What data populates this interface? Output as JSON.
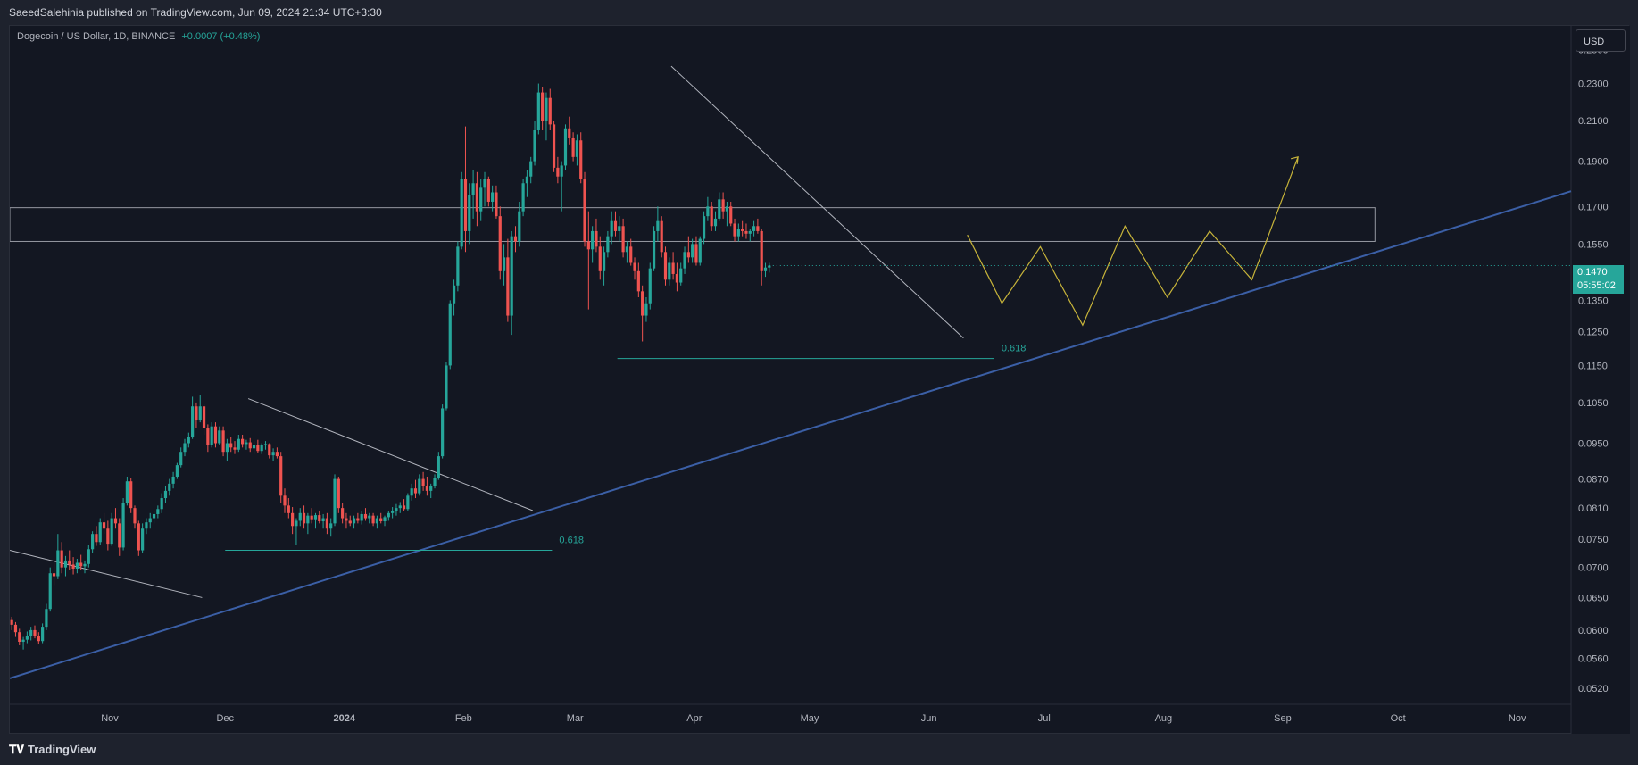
{
  "header": {
    "published_text": "SaeedSalehinia published on TradingView.com, Jun 09, 2024 21:34 UTC+3:30"
  },
  "legend": {
    "symbol": "Dogecoin / US Dollar, 1D, BINANCE",
    "change": "+0.0007 (+0.48%)"
  },
  "currency_label": "USD",
  "last_price": {
    "price": "0.1470",
    "countdown": "05:55:02"
  },
  "footer": {
    "logo_text": "TradingView"
  },
  "colors": {
    "up": "#26a69a",
    "down": "#ef5350",
    "trendline": "#3b5fa6",
    "projection": "#c7b43a",
    "fib": "#26a69a",
    "background": "#131722"
  },
  "chart_data": {
    "type": "candlestick",
    "scale": "log",
    "ylim": [
      0.05,
      0.265
    ],
    "y_ticks": [
      "0.2500",
      "0.2300",
      "0.2100",
      "0.1900",
      "0.1700",
      "0.1550",
      "0.1350",
      "0.1250",
      "0.1150",
      "0.1050",
      "0.0950",
      "0.0870",
      "0.0810",
      "0.0750",
      "0.0700",
      "0.0650",
      "0.0600",
      "0.0560",
      "0.0520"
    ],
    "x_ticks": [
      "Nov",
      "Dec",
      "2024",
      "Feb",
      "Mar",
      "Apr",
      "May",
      "Jun",
      "Jul",
      "Aug",
      "Sep",
      "Oct",
      "Nov"
    ],
    "x_range": [
      "2023-10-06",
      "2024-11-15"
    ],
    "candles_ohlc": [
      [
        0.0615,
        0.062,
        0.06,
        0.0608
      ],
      [
        0.0608,
        0.0612,
        0.059,
        0.0597
      ],
      [
        0.0597,
        0.0602,
        0.0578,
        0.0583
      ],
      [
        0.0583,
        0.059,
        0.0572,
        0.0586
      ],
      [
        0.0586,
        0.0598,
        0.0581,
        0.0592
      ],
      [
        0.0592,
        0.0605,
        0.0585,
        0.06
      ],
      [
        0.06,
        0.0607,
        0.0588,
        0.0591
      ],
      [
        0.0591,
        0.0597,
        0.058,
        0.0584
      ],
      [
        0.0584,
        0.061,
        0.0581,
        0.0605
      ],
      [
        0.0605,
        0.064,
        0.06,
        0.0632
      ],
      [
        0.0632,
        0.07,
        0.0628,
        0.069
      ],
      [
        0.069,
        0.0708,
        0.067,
        0.0685
      ],
      [
        0.0685,
        0.076,
        0.068,
        0.073
      ],
      [
        0.073,
        0.0745,
        0.069,
        0.07
      ],
      [
        0.07,
        0.072,
        0.0685,
        0.0712
      ],
      [
        0.0712,
        0.073,
        0.0695,
        0.0705
      ],
      [
        0.0705,
        0.0718,
        0.0688,
        0.0698
      ],
      [
        0.0698,
        0.0715,
        0.069,
        0.0708
      ],
      [
        0.0708,
        0.0722,
        0.0695,
        0.0702
      ],
      [
        0.0702,
        0.0712,
        0.069,
        0.0706
      ],
      [
        0.0706,
        0.074,
        0.07,
        0.0732
      ],
      [
        0.0732,
        0.0765,
        0.0725,
        0.076
      ],
      [
        0.076,
        0.0775,
        0.0738,
        0.0745
      ],
      [
        0.0745,
        0.079,
        0.074,
        0.0782
      ],
      [
        0.0782,
        0.08,
        0.076,
        0.077
      ],
      [
        0.077,
        0.0785,
        0.073,
        0.0742
      ],
      [
        0.0742,
        0.08,
        0.0738,
        0.079
      ],
      [
        0.079,
        0.081,
        0.077,
        0.078
      ],
      [
        0.078,
        0.079,
        0.072,
        0.0735
      ],
      [
        0.0735,
        0.083,
        0.073,
        0.082
      ],
      [
        0.082,
        0.0875,
        0.0815,
        0.0865
      ],
      [
        0.0865,
        0.0872,
        0.08,
        0.081
      ],
      [
        0.081,
        0.0815,
        0.077,
        0.078
      ],
      [
        0.078,
        0.0785,
        0.072,
        0.073
      ],
      [
        0.073,
        0.078,
        0.0725,
        0.077
      ],
      [
        0.077,
        0.079,
        0.076,
        0.0782
      ],
      [
        0.0782,
        0.08,
        0.077,
        0.079
      ],
      [
        0.079,
        0.0805,
        0.078,
        0.0798
      ],
      [
        0.0798,
        0.0815,
        0.079,
        0.0808
      ],
      [
        0.0808,
        0.084,
        0.08,
        0.083
      ],
      [
        0.083,
        0.0855,
        0.082,
        0.0845
      ],
      [
        0.0845,
        0.087,
        0.0835,
        0.086
      ],
      [
        0.086,
        0.0885,
        0.085,
        0.0875
      ],
      [
        0.0875,
        0.0905,
        0.087,
        0.09
      ],
      [
        0.09,
        0.094,
        0.0895,
        0.093
      ],
      [
        0.093,
        0.096,
        0.092,
        0.095
      ],
      [
        0.095,
        0.0975,
        0.094,
        0.0965
      ],
      [
        0.0965,
        0.1065,
        0.096,
        0.104
      ],
      [
        0.104,
        0.105,
        0.0985,
        0.1005
      ],
      [
        0.1005,
        0.107,
        0.1,
        0.104
      ],
      [
        0.104,
        0.1045,
        0.097,
        0.0985
      ],
      [
        0.0985,
        0.0995,
        0.093,
        0.0945
      ],
      [
        0.0945,
        0.1,
        0.094,
        0.099
      ],
      [
        0.099,
        0.1,
        0.094,
        0.095
      ],
      [
        0.095,
        0.099,
        0.0945,
        0.098
      ],
      [
        0.098,
        0.099,
        0.092,
        0.093
      ],
      [
        0.093,
        0.096,
        0.091,
        0.095
      ],
      [
        0.095,
        0.0965,
        0.093,
        0.094
      ],
      [
        0.094,
        0.0955,
        0.0925,
        0.0935
      ],
      [
        0.0935,
        0.097,
        0.093,
        0.096
      ],
      [
        0.096,
        0.097,
        0.094,
        0.0948
      ],
      [
        0.0948,
        0.0958,
        0.0935,
        0.0952
      ],
      [
        0.0952,
        0.0962,
        0.093,
        0.0938
      ],
      [
        0.0938,
        0.0955,
        0.0925,
        0.0945
      ],
      [
        0.0945,
        0.0958,
        0.0928,
        0.0932
      ],
      [
        0.0932,
        0.095,
        0.0925,
        0.0945
      ],
      [
        0.0945,
        0.0955,
        0.0935,
        0.0948
      ],
      [
        0.0948,
        0.095,
        0.0915,
        0.0922
      ],
      [
        0.0922,
        0.0938,
        0.091,
        0.093
      ],
      [
        0.093,
        0.094,
        0.0915,
        0.092
      ],
      [
        0.092,
        0.093,
        0.082,
        0.0835
      ],
      [
        0.0835,
        0.085,
        0.08,
        0.0815
      ],
      [
        0.0815,
        0.083,
        0.079,
        0.08
      ],
      [
        0.08,
        0.0812,
        0.076,
        0.0775
      ],
      [
        0.0775,
        0.079,
        0.074,
        0.0785
      ],
      [
        0.0785,
        0.081,
        0.0775,
        0.08
      ],
      [
        0.08,
        0.0815,
        0.077,
        0.078
      ],
      [
        0.078,
        0.08,
        0.076,
        0.0795
      ],
      [
        0.0795,
        0.081,
        0.078,
        0.0788
      ],
      [
        0.0788,
        0.08,
        0.077,
        0.0796
      ],
      [
        0.0796,
        0.0805,
        0.078,
        0.0784
      ],
      [
        0.0784,
        0.0798,
        0.077,
        0.079
      ],
      [
        0.079,
        0.08,
        0.076,
        0.077
      ],
      [
        0.077,
        0.079,
        0.0755,
        0.078
      ],
      [
        0.078,
        0.088,
        0.0775,
        0.087
      ],
      [
        0.087,
        0.0875,
        0.08,
        0.081
      ],
      [
        0.081,
        0.082,
        0.078,
        0.079
      ],
      [
        0.079,
        0.08,
        0.077,
        0.0785
      ],
      [
        0.0785,
        0.0795,
        0.0775,
        0.078
      ],
      [
        0.078,
        0.0795,
        0.077,
        0.079
      ],
      [
        0.079,
        0.08,
        0.078,
        0.0785
      ],
      [
        0.0785,
        0.0805,
        0.0778,
        0.0798
      ],
      [
        0.0798,
        0.081,
        0.0785,
        0.079
      ],
      [
        0.079,
        0.08,
        0.078,
        0.0795
      ],
      [
        0.0795,
        0.08,
        0.0775,
        0.078
      ],
      [
        0.078,
        0.0795,
        0.077,
        0.079
      ],
      [
        0.079,
        0.08,
        0.078,
        0.0784
      ],
      [
        0.0784,
        0.0795,
        0.0775,
        0.0792
      ],
      [
        0.0792,
        0.0805,
        0.0785,
        0.08
      ],
      [
        0.08,
        0.0812,
        0.079,
        0.0805
      ],
      [
        0.0805,
        0.0818,
        0.0795,
        0.081
      ],
      [
        0.081,
        0.0822,
        0.08,
        0.0815
      ],
      [
        0.0815,
        0.0828,
        0.0805,
        0.0808
      ],
      [
        0.0808,
        0.084,
        0.0805,
        0.0835
      ],
      [
        0.0835,
        0.086,
        0.0825,
        0.085
      ],
      [
        0.085,
        0.0868,
        0.083,
        0.084
      ],
      [
        0.084,
        0.088,
        0.0835,
        0.087
      ],
      [
        0.087,
        0.0885,
        0.0845,
        0.0855
      ],
      [
        0.0855,
        0.0875,
        0.0835,
        0.0845
      ],
      [
        0.0845,
        0.086,
        0.083,
        0.0855
      ],
      [
        0.0855,
        0.088,
        0.085,
        0.0872
      ],
      [
        0.0872,
        0.093,
        0.0868,
        0.092
      ],
      [
        0.092,
        0.1045,
        0.0915,
        0.1035
      ],
      [
        0.1035,
        0.116,
        0.103,
        0.115
      ],
      [
        0.115,
        0.135,
        0.114,
        0.134
      ],
      [
        0.134,
        0.142,
        0.13,
        0.14
      ],
      [
        0.14,
        0.156,
        0.138,
        0.154
      ],
      [
        0.154,
        0.185,
        0.153,
        0.182
      ],
      [
        0.182,
        0.207,
        0.152,
        0.16
      ],
      [
        0.16,
        0.18,
        0.155,
        0.175
      ],
      [
        0.175,
        0.186,
        0.165,
        0.18
      ],
      [
        0.18,
        0.185,
        0.162,
        0.168
      ],
      [
        0.168,
        0.182,
        0.164,
        0.178
      ],
      [
        0.178,
        0.185,
        0.17,
        0.182
      ],
      [
        0.182,
        0.183,
        0.17,
        0.172
      ],
      [
        0.172,
        0.179,
        0.168,
        0.176
      ],
      [
        0.176,
        0.179,
        0.165,
        0.166
      ],
      [
        0.166,
        0.17,
        0.142,
        0.145
      ],
      [
        0.145,
        0.155,
        0.14,
        0.15
      ],
      [
        0.15,
        0.157,
        0.128,
        0.13
      ],
      [
        0.13,
        0.16,
        0.124,
        0.158
      ],
      [
        0.158,
        0.162,
        0.152,
        0.156
      ],
      [
        0.156,
        0.172,
        0.154,
        0.168
      ],
      [
        0.168,
        0.182,
        0.166,
        0.18
      ],
      [
        0.18,
        0.186,
        0.174,
        0.183
      ],
      [
        0.183,
        0.192,
        0.18,
        0.19
      ],
      [
        0.19,
        0.21,
        0.188,
        0.205
      ],
      [
        0.205,
        0.23,
        0.203,
        0.225
      ],
      [
        0.225,
        0.228,
        0.205,
        0.21
      ],
      [
        0.21,
        0.225,
        0.2,
        0.222
      ],
      [
        0.222,
        0.227,
        0.205,
        0.208
      ],
      [
        0.208,
        0.21,
        0.185,
        0.187
      ],
      [
        0.187,
        0.192,
        0.18,
        0.183
      ],
      [
        0.183,
        0.19,
        0.168,
        0.188
      ],
      [
        0.188,
        0.208,
        0.186,
        0.206
      ],
      [
        0.206,
        0.212,
        0.198,
        0.201
      ],
      [
        0.201,
        0.204,
        0.19,
        0.192
      ],
      [
        0.192,
        0.203,
        0.188,
        0.2
      ],
      [
        0.2,
        0.204,
        0.18,
        0.182
      ],
      [
        0.182,
        0.185,
        0.154,
        0.156
      ],
      [
        0.156,
        0.168,
        0.132,
        0.153
      ],
      [
        0.153,
        0.162,
        0.148,
        0.16
      ],
      [
        0.16,
        0.165,
        0.152,
        0.154
      ],
      [
        0.154,
        0.158,
        0.142,
        0.145
      ],
      [
        0.145,
        0.154,
        0.14,
        0.152
      ],
      [
        0.152,
        0.16,
        0.15,
        0.158
      ],
      [
        0.158,
        0.168,
        0.155,
        0.164
      ],
      [
        0.164,
        0.168,
        0.158,
        0.16
      ],
      [
        0.16,
        0.166,
        0.156,
        0.162
      ],
      [
        0.162,
        0.165,
        0.15,
        0.152
      ],
      [
        0.152,
        0.156,
        0.148,
        0.154
      ],
      [
        0.154,
        0.157,
        0.147,
        0.148
      ],
      [
        0.148,
        0.15,
        0.142,
        0.145
      ],
      [
        0.145,
        0.148,
        0.136,
        0.138
      ],
      [
        0.138,
        0.14,
        0.122,
        0.13
      ],
      [
        0.13,
        0.136,
        0.128,
        0.134
      ],
      [
        0.134,
        0.148,
        0.132,
        0.146
      ],
      [
        0.146,
        0.162,
        0.145,
        0.16
      ],
      [
        0.16,
        0.17,
        0.156,
        0.164
      ],
      [
        0.164,
        0.166,
        0.15,
        0.152
      ],
      [
        0.152,
        0.154,
        0.14,
        0.142
      ],
      [
        0.142,
        0.15,
        0.14,
        0.148
      ],
      [
        0.148,
        0.152,
        0.142,
        0.144
      ],
      [
        0.144,
        0.148,
        0.138,
        0.141
      ],
      [
        0.141,
        0.148,
        0.14,
        0.146
      ],
      [
        0.146,
        0.154,
        0.144,
        0.152
      ],
      [
        0.152,
        0.158,
        0.148,
        0.15
      ],
      [
        0.15,
        0.157,
        0.148,
        0.155
      ],
      [
        0.155,
        0.158,
        0.147,
        0.148
      ],
      [
        0.148,
        0.158,
        0.147,
        0.157
      ],
      [
        0.157,
        0.168,
        0.155,
        0.166
      ],
      [
        0.166,
        0.174,
        0.164,
        0.17
      ],
      [
        0.17,
        0.172,
        0.16,
        0.162
      ],
      [
        0.162,
        0.168,
        0.16,
        0.165
      ],
      [
        0.165,
        0.176,
        0.164,
        0.173
      ],
      [
        0.173,
        0.176,
        0.165,
        0.168
      ],
      [
        0.168,
        0.172,
        0.162,
        0.17
      ],
      [
        0.17,
        0.172,
        0.162,
        0.163
      ],
      [
        0.163,
        0.165,
        0.156,
        0.158
      ],
      [
        0.158,
        0.163,
        0.156,
        0.161
      ],
      [
        0.161,
        0.164,
        0.158,
        0.16
      ],
      [
        0.16,
        0.163,
        0.157,
        0.159
      ],
      [
        0.159,
        0.161,
        0.156,
        0.16
      ],
      [
        0.16,
        0.164,
        0.158,
        0.162
      ],
      [
        0.162,
        0.165,
        0.159,
        0.16
      ],
      [
        0.16,
        0.161,
        0.14,
        0.145
      ],
      [
        0.145,
        0.148,
        0.143,
        0.1463
      ],
      [
        0.1463,
        0.148,
        0.1445,
        0.147
      ]
    ],
    "fib_levels": [
      {
        "label": "0.618",
        "value": 0.073,
        "from": "2023-12-01",
        "to": "2024-02-24"
      },
      {
        "label": "0.618",
        "value": 0.117,
        "from": "2024-03-12",
        "to": "2024-06-18"
      }
    ],
    "resistance_zone": {
      "low": 0.156,
      "high": 0.1695,
      "from": "2023-10-06",
      "to": "2024-09-25"
    },
    "trendlines": [
      {
        "name": "support",
        "points": [
          [
            "2023-10-06",
            0.0533
          ],
          [
            "2024-11-15",
            0.1765
          ]
        ]
      },
      {
        "name": "down1",
        "points": [
          [
            "2023-10-06",
            0.073
          ],
          [
            "2023-11-25",
            0.065
          ]
        ]
      },
      {
        "name": "down2",
        "points": [
          [
            "2023-12-07",
            0.106
          ],
          [
            "2024-02-19",
            0.0805
          ]
        ]
      },
      {
        "name": "down3",
        "points": [
          [
            "2024-03-26",
            0.24
          ],
          [
            "2024-06-10",
            0.123
          ]
        ]
      }
    ],
    "projection_path": [
      [
        "2024-06-11",
        0.1585
      ],
      [
        "2024-06-20",
        0.134
      ],
      [
        "2024-06-30",
        0.154
      ],
      [
        "2024-07-11",
        0.127
      ],
      [
        "2024-07-22",
        0.162
      ],
      [
        "2024-08-02",
        0.136
      ],
      [
        "2024-08-13",
        0.16
      ],
      [
        "2024-08-24",
        0.142
      ],
      [
        "2024-09-05",
        0.192
      ]
    ]
  }
}
